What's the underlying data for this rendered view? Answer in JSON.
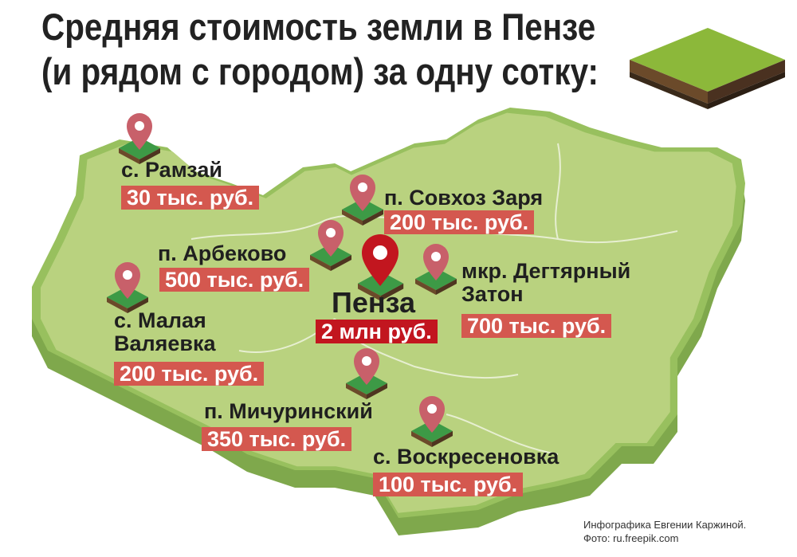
{
  "title": {
    "line1": "Средняя стоимость земли в Пензе",
    "line2": "(и рядом с городом) за одну сотку:"
  },
  "colors": {
    "map_top": "#b9d27f",
    "map_side": "#7fa84c",
    "pin": "#c8606a",
    "pin_main": "#c2161f",
    "price_box": "#d4584f",
    "price_box_main": "#c2161f"
  },
  "locations": [
    {
      "name": "с. Рамзай",
      "price": "30 тыс. руб."
    },
    {
      "name": "п. Совхоз Заря",
      "price": "200 тыс. руб."
    },
    {
      "name": "п. Арбеково",
      "price": "500 тыс. руб."
    },
    {
      "name": "Пенза",
      "price": "2 млн руб."
    },
    {
      "name_line1": "мкр. Дегтярный",
      "name_line2": "Затон",
      "price": "700 тыс. руб."
    },
    {
      "name_line1": "с. Малая",
      "name_line2": "Валяевка",
      "price": "200 тыс. руб."
    },
    {
      "name": "п. Мичуринский",
      "price": "350 тыс. руб."
    },
    {
      "name": "с. Воскресеновка",
      "price": "100 тыс. руб."
    }
  ],
  "credit": {
    "line1": "Инфографика Евгении Каржиной.",
    "line2": "Фото: ru.freepik.com"
  }
}
